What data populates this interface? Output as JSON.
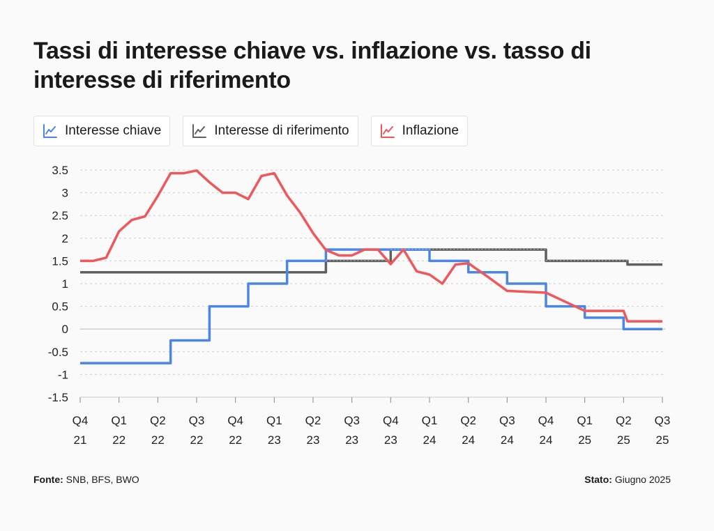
{
  "title": "Tassi di interesse chiave vs. inflazione vs. tasso di interesse di riferimento",
  "legend": [
    {
      "label": "Interesse chiave",
      "color": "#4a86e8",
      "icon": "line-chart-icon"
    },
    {
      "label": "Interesse di riferimento",
      "color": "#5f5f5f",
      "icon": "line-chart-icon"
    },
    {
      "label": "Inflazione",
      "color": "#f0565a",
      "icon": "line-chart-icon"
    }
  ],
  "footer": {
    "source_label": "Fonte:",
    "source_value": "SNB, BFS, BWO",
    "status_label": "Stato:",
    "status_value": "Giugno 2025"
  },
  "chart_data": {
    "type": "line",
    "title": "Tassi di interesse chiave vs. inflazione vs. tasso di interesse di riferimento",
    "xlabel": "",
    "ylabel": "",
    "ylim": [
      -1.5,
      3.5
    ],
    "yticks": [
      "3.5",
      "3",
      "2.5",
      "2",
      "1.5",
      "1",
      "0.5",
      "0",
      "-0.5",
      "-1",
      "-1.5"
    ],
    "categories": [
      [
        "Q4",
        "21"
      ],
      [
        "Q1",
        "22"
      ],
      [
        "Q2",
        "22"
      ],
      [
        "Q3",
        "22"
      ],
      [
        "Q4",
        "22"
      ],
      [
        "Q1",
        "23"
      ],
      [
        "Q2",
        "23"
      ],
      [
        "Q3",
        "23"
      ],
      [
        "Q4",
        "23"
      ],
      [
        "Q1",
        "24"
      ],
      [
        "Q2",
        "24"
      ],
      [
        "Q3",
        "24"
      ],
      [
        "Q4",
        "24"
      ],
      [
        "Q1",
        "25"
      ],
      [
        "Q2",
        "25"
      ],
      [
        "Q3",
        "25"
      ]
    ],
    "grid": true,
    "legend_position": "top-left",
    "series": [
      {
        "name": "Interesse chiave",
        "color": "#4a86e8",
        "step": true,
        "points": [
          [
            0,
            -0.75
          ],
          [
            2.33,
            -0.75
          ],
          [
            2.33,
            -0.25
          ],
          [
            3.33,
            -0.25
          ],
          [
            3.33,
            0.5
          ],
          [
            4.33,
            0.5
          ],
          [
            4.33,
            1.0
          ],
          [
            5.33,
            1.0
          ],
          [
            5.33,
            1.5
          ],
          [
            6.33,
            1.5
          ],
          [
            6.33,
            1.75
          ],
          [
            9.0,
            1.75
          ],
          [
            9.0,
            1.5
          ],
          [
            10.0,
            1.5
          ],
          [
            10.0,
            1.25
          ],
          [
            11.0,
            1.25
          ],
          [
            11.0,
            1.0
          ],
          [
            12.0,
            1.0
          ],
          [
            12.0,
            0.5
          ],
          [
            13.0,
            0.5
          ],
          [
            13.0,
            0.25
          ],
          [
            14.0,
            0.25
          ],
          [
            14.0,
            0.0
          ],
          [
            15.0,
            0.0
          ]
        ]
      },
      {
        "name": "Interesse di riferimento",
        "color": "#5f5f5f",
        "step": true,
        "points": [
          [
            0,
            1.25
          ],
          [
            6.33,
            1.25
          ],
          [
            6.33,
            1.5
          ],
          [
            8.0,
            1.5
          ],
          [
            8.0,
            1.75
          ],
          [
            12.0,
            1.75
          ],
          [
            12.0,
            1.5
          ],
          [
            14.1,
            1.5
          ],
          [
            14.1,
            1.42
          ],
          [
            15.0,
            1.42
          ]
        ]
      },
      {
        "name": "Inflazione",
        "color": "#f0565a",
        "step": false,
        "points": [
          [
            0,
            1.5
          ],
          [
            0.33,
            1.5
          ],
          [
            0.67,
            1.57
          ],
          [
            1.0,
            2.15
          ],
          [
            1.33,
            2.4
          ],
          [
            1.67,
            2.48
          ],
          [
            2.0,
            2.93
          ],
          [
            2.33,
            3.43
          ],
          [
            2.67,
            3.43
          ],
          [
            3.0,
            3.49
          ],
          [
            3.33,
            3.23
          ],
          [
            3.67,
            3.0
          ],
          [
            4.0,
            3.0
          ],
          [
            4.33,
            2.86
          ],
          [
            4.67,
            3.37
          ],
          [
            5.0,
            3.43
          ],
          [
            5.33,
            2.94
          ],
          [
            5.67,
            2.56
          ],
          [
            6.0,
            2.11
          ],
          [
            6.33,
            1.74
          ],
          [
            6.67,
            1.62
          ],
          [
            7.0,
            1.62
          ],
          [
            7.33,
            1.75
          ],
          [
            7.67,
            1.75
          ],
          [
            8.0,
            1.43
          ],
          [
            8.33,
            1.75
          ],
          [
            8.67,
            1.27
          ],
          [
            9.0,
            1.2
          ],
          [
            9.33,
            1.0
          ],
          [
            9.67,
            1.42
          ],
          [
            10.0,
            1.45
          ],
          [
            10.5,
            1.15
          ],
          [
            11.0,
            0.84
          ],
          [
            11.5,
            0.82
          ],
          [
            12.0,
            0.8
          ],
          [
            12.5,
            0.6
          ],
          [
            13.0,
            0.4
          ],
          [
            13.5,
            0.4
          ],
          [
            14.0,
            0.4
          ],
          [
            14.1,
            0.17
          ],
          [
            15.0,
            0.17
          ]
        ]
      }
    ]
  }
}
